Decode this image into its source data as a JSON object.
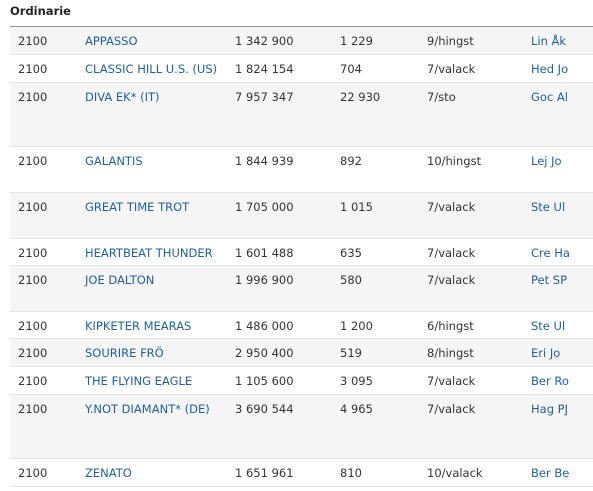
{
  "title": "Ordinarie",
  "table": {
    "rows": [
      [
        "2100",
        "APPASSO",
        "1 342 900",
        "1 229",
        "9/hingst",
        "Lin Åk"
      ],
      [
        "2100",
        "CLASSIC HILL U.S. (US)",
        "1 824 154",
        "704",
        "7/valack",
        "Hed Jo"
      ],
      [
        "2100",
        "DIVA EK* (IT)",
        "7 957 347",
        "22 930",
        "7/sto",
        "Goc Al"
      ],
      [
        "2100",
        "GALANTIS",
        "1 844 939",
        "892",
        "10/hingst",
        "Lej Jo"
      ],
      [
        "2100",
        "GREAT TIME TROT",
        "1 705 000",
        "1 015",
        "7/valack",
        "Ste Ul"
      ],
      [
        "2100",
        "HEARTBEAT THUNDER",
        "1 601 488",
        "635",
        "7/valack",
        "Cre Ha"
      ],
      [
        "2100",
        "JOE DALTON",
        "1 996 900",
        "580",
        "7/valack",
        "Pet SP"
      ],
      [
        "2100",
        "KIPKETER MEARAS",
        "1 486 000",
        "1 200",
        "6/hingst",
        "Ste Ul"
      ],
      [
        "2100",
        "SOURIRE FRÖ",
        "2 950 400",
        "519",
        "8/hingst",
        "Eri Jo"
      ],
      [
        "2100",
        "THE FLYING EAGLE",
        "1 105 600",
        "3 095",
        "7/valack",
        "Ber Ro"
      ],
      [
        "2100",
        "Y.NOT DIAMANT* (DE)",
        "3 690 544",
        "4 965",
        "7/valack",
        "Hag PJ"
      ],
      [
        "2100",
        "ZENATO",
        "1 651 961",
        "810",
        "10/valack",
        "Ber Be"
      ]
    ]
  }
}
